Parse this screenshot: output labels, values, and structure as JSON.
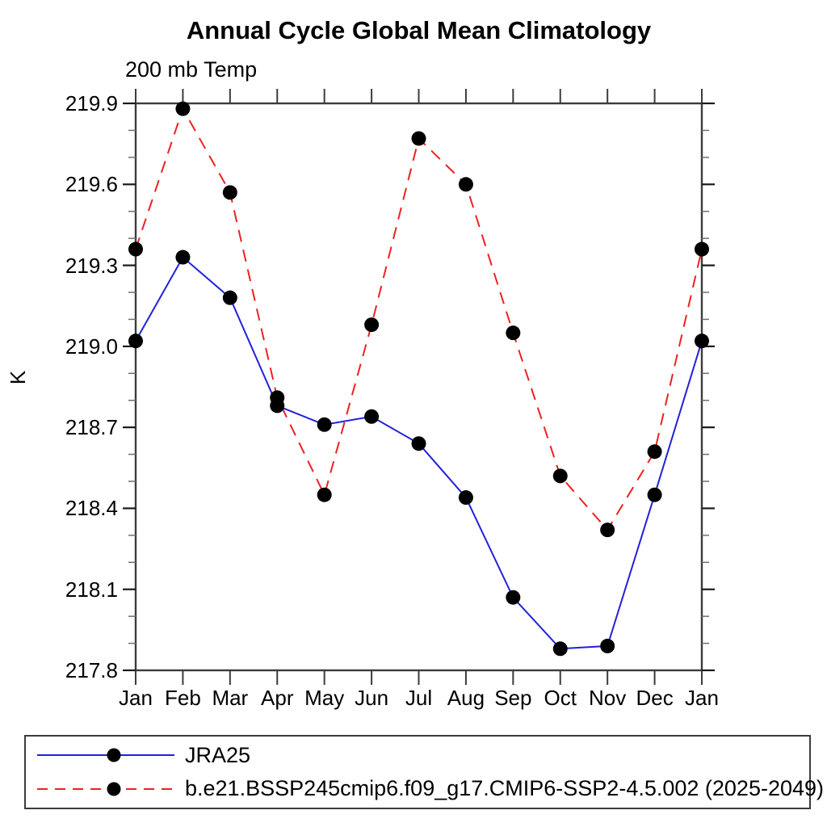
{
  "chart_data": {
    "type": "line",
    "title": "Annual Cycle Global Mean Climatology",
    "subtitle": "200 mb Temp",
    "ylabel": "K",
    "categories": [
      "Jan",
      "Feb",
      "Mar",
      "Apr",
      "May",
      "Jun",
      "Jul",
      "Aug",
      "Sep",
      "Oct",
      "Nov",
      "Dec",
      "Jan"
    ],
    "ylim": [
      217.8,
      219.9
    ],
    "y_ticks": [
      219.9,
      219.6,
      219.3,
      219.0,
      218.7,
      218.4,
      218.1,
      217.8
    ],
    "y_minor_step": 0.1,
    "grid": false,
    "legend_position": "bottom-left-box",
    "axis_color": "#3c3c3c",
    "series": [
      {
        "name": "JRA25",
        "color": "#2121d9",
        "line_style": "solid",
        "marker": "filled-circle",
        "marker_color": "#000000",
        "values": [
          219.02,
          219.33,
          219.18,
          218.78,
          218.71,
          218.74,
          218.64,
          218.44,
          218.07,
          217.88,
          217.89,
          218.45,
          219.02
        ]
      },
      {
        "name": "b.e21.BSSP245cmip6.f09_g17.CMIP6-SSP2-4.5.002 (2025-2049)",
        "color": "#ed2121",
        "line_style": "dashed",
        "marker": "filled-circle",
        "marker_color": "#000000",
        "values": [
          219.36,
          219.88,
          219.57,
          218.81,
          218.45,
          219.08,
          219.77,
          219.6,
          219.05,
          218.52,
          218.32,
          218.61,
          219.36
        ]
      }
    ]
  }
}
